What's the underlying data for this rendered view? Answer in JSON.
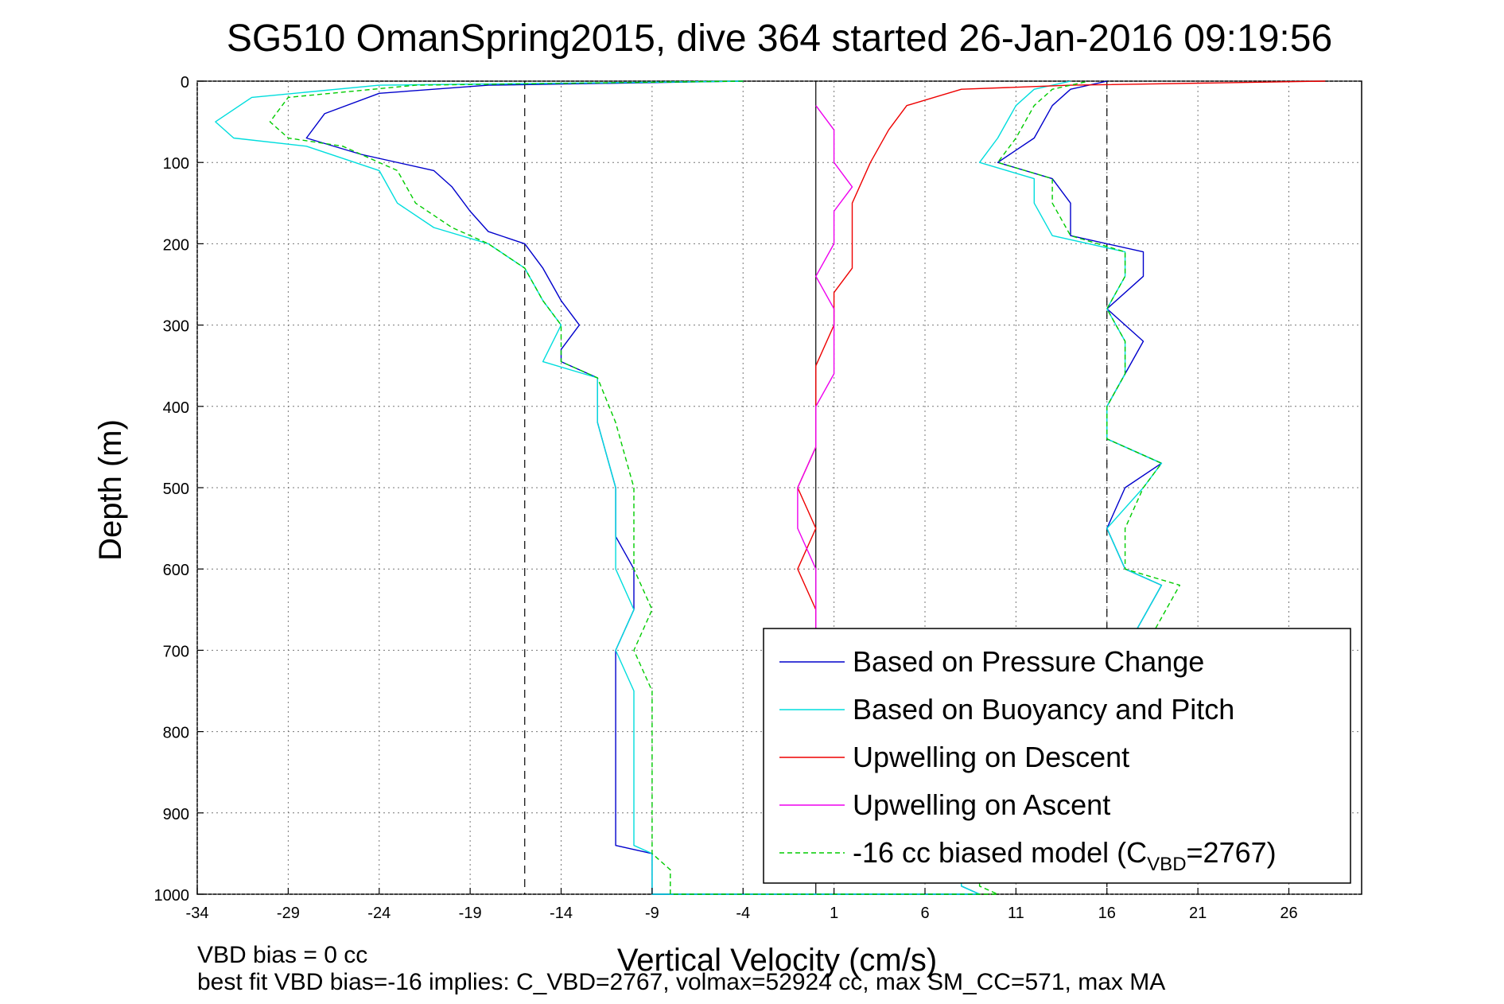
{
  "chart_data": {
    "type": "line",
    "title": "SG510 OmanSpring2015, dive 364 started 26-Jan-2016 09:19:56",
    "xlabel": "Vertical Velocity (cm/s)",
    "ylabel": "Depth (m)",
    "xlim": [
      -34,
      30
    ],
    "ylim": [
      0,
      1000
    ],
    "y_reversed": true,
    "grid": "dotted",
    "xticks": [
      -34,
      -29,
      -24,
      -19,
      -14,
      -9,
      -4,
      1,
      6,
      11,
      16,
      21,
      26
    ],
    "yticks": [
      0,
      100,
      200,
      300,
      400,
      500,
      600,
      700,
      800,
      900,
      1000
    ],
    "reference_lines": [
      {
        "x": -16,
        "style": "dashed"
      },
      {
        "x": 0,
        "style": "solid"
      },
      {
        "x": 16,
        "style": "dashed"
      }
    ],
    "legend_position": "lower-right",
    "series": [
      {
        "name": "Based on Pressure Change",
        "color": "#0000cc",
        "style": "solid",
        "points": [
          [
            -4,
            0
          ],
          [
            -18,
            5
          ],
          [
            -24,
            15
          ],
          [
            -27,
            40
          ],
          [
            -28,
            70
          ],
          [
            -25,
            90
          ],
          [
            -21,
            110
          ],
          [
            -20,
            130
          ],
          [
            -19,
            160
          ],
          [
            -18,
            185
          ],
          [
            -16,
            200
          ],
          [
            -15,
            230
          ],
          [
            -14,
            270
          ],
          [
            -13,
            300
          ],
          [
            -14,
            330
          ],
          [
            -14,
            345
          ],
          [
            -12,
            365
          ],
          [
            -12,
            420
          ],
          [
            -11,
            500
          ],
          [
            -11,
            560
          ],
          [
            -10,
            600
          ],
          [
            -10,
            650
          ],
          [
            -11,
            700
          ],
          [
            -11,
            750
          ],
          [
            -11,
            800
          ],
          [
            -11,
            850
          ],
          [
            -11,
            900
          ],
          [
            -11,
            940
          ],
          [
            -9,
            950
          ],
          [
            -9,
            970
          ],
          [
            -9,
            990
          ],
          [
            -9,
            1000
          ],
          [
            9,
            1000
          ],
          [
            8,
            990
          ],
          [
            8,
            960
          ],
          [
            8,
            900
          ],
          [
            11,
            870
          ],
          [
            11,
            850
          ],
          [
            12,
            820
          ],
          [
            14,
            780
          ],
          [
            15,
            740
          ],
          [
            17,
            700
          ],
          [
            18,
            660
          ],
          [
            19,
            620
          ],
          [
            17,
            600
          ],
          [
            16,
            550
          ],
          [
            17,
            500
          ],
          [
            19,
            470
          ],
          [
            16,
            440
          ],
          [
            16,
            400
          ],
          [
            17,
            360
          ],
          [
            18,
            320
          ],
          [
            16,
            280
          ],
          [
            18,
            240
          ],
          [
            18,
            210
          ],
          [
            14,
            190
          ],
          [
            14,
            150
          ],
          [
            13,
            120
          ],
          [
            10,
            100
          ],
          [
            12,
            70
          ],
          [
            13,
            30
          ],
          [
            14,
            10
          ],
          [
            16,
            0
          ]
        ]
      },
      {
        "name": "Based on Buoyancy and Pitch",
        "color": "#00dddd",
        "style": "solid",
        "points": [
          [
            -4,
            0
          ],
          [
            -24,
            5
          ],
          [
            -31,
            20
          ],
          [
            -33,
            50
          ],
          [
            -32,
            70
          ],
          [
            -28,
            80
          ],
          [
            -24,
            110
          ],
          [
            -23,
            150
          ],
          [
            -21,
            180
          ],
          [
            -18,
            200
          ],
          [
            -16,
            230
          ],
          [
            -15,
            270
          ],
          [
            -14,
            300
          ],
          [
            -15,
            345
          ],
          [
            -12,
            365
          ],
          [
            -12,
            420
          ],
          [
            -11,
            500
          ],
          [
            -11,
            560
          ],
          [
            -11,
            600
          ],
          [
            -10,
            650
          ],
          [
            -11,
            700
          ],
          [
            -10,
            750
          ],
          [
            -10,
            800
          ],
          [
            -10,
            850
          ],
          [
            -10,
            900
          ],
          [
            -10,
            940
          ],
          [
            -9,
            950
          ],
          [
            -9,
            970
          ],
          [
            -9,
            990
          ],
          [
            -9,
            1000
          ],
          [
            9,
            1000
          ],
          [
            8,
            990
          ],
          [
            8,
            960
          ],
          [
            8,
            900
          ],
          [
            11,
            870
          ],
          [
            11,
            850
          ],
          [
            12,
            820
          ],
          [
            14,
            780
          ],
          [
            15,
            740
          ],
          [
            17,
            700
          ],
          [
            18,
            660
          ],
          [
            19,
            620
          ],
          [
            17,
            600
          ],
          [
            16,
            550
          ],
          [
            18,
            500
          ],
          [
            19,
            470
          ],
          [
            16,
            440
          ],
          [
            16,
            400
          ],
          [
            17,
            360
          ],
          [
            17,
            320
          ],
          [
            16,
            280
          ],
          [
            17,
            240
          ],
          [
            17,
            210
          ],
          [
            13,
            190
          ],
          [
            12,
            150
          ],
          [
            12,
            120
          ],
          [
            9,
            100
          ],
          [
            10,
            70
          ],
          [
            11,
            30
          ],
          [
            12,
            10
          ],
          [
            14,
            0
          ]
        ]
      },
      {
        "name": "Upwelling on Descent",
        "color": "#ee0000",
        "style": "solid",
        "points": [
          [
            28,
            0
          ],
          [
            14,
            5
          ],
          [
            8,
            10
          ],
          [
            5,
            30
          ],
          [
            4,
            60
          ],
          [
            3,
            100
          ],
          [
            2,
            150
          ],
          [
            2,
            200
          ],
          [
            2,
            230
          ],
          [
            1,
            260
          ],
          [
            1,
            300
          ],
          [
            0,
            350
          ],
          [
            0,
            400
          ],
          [
            0,
            450
          ],
          [
            -1,
            500
          ],
          [
            0,
            550
          ],
          [
            -1,
            600
          ],
          [
            0,
            650
          ],
          [
            0,
            700
          ]
        ]
      },
      {
        "name": "Upwelling on Ascent",
        "color": "#ee00ee",
        "style": "solid",
        "points": [
          [
            0,
            30
          ],
          [
            1,
            60
          ],
          [
            1,
            100
          ],
          [
            2,
            130
          ],
          [
            1,
            160
          ],
          [
            1,
            200
          ],
          [
            0,
            240
          ],
          [
            1,
            280
          ],
          [
            1,
            320
          ],
          [
            1,
            360
          ],
          [
            0,
            400
          ],
          [
            0,
            450
          ],
          [
            -1,
            500
          ],
          [
            -1,
            550
          ],
          [
            0,
            600
          ],
          [
            0,
            650
          ],
          [
            0,
            700
          ]
        ]
      },
      {
        "name": "-16 cc biased model (C",
        "name_subscript": "VBD",
        "name_suffix": "=2767)",
        "color": "#00cc00",
        "style": "dashed",
        "points": [
          [
            -4,
            0
          ],
          [
            -22,
            5
          ],
          [
            -29,
            20
          ],
          [
            -30,
            50
          ],
          [
            -29,
            70
          ],
          [
            -26,
            80
          ],
          [
            -23,
            110
          ],
          [
            -22,
            150
          ],
          [
            -20,
            180
          ],
          [
            -18,
            200
          ],
          [
            -16,
            230
          ],
          [
            -15,
            270
          ],
          [
            -14,
            300
          ],
          [
            -14,
            345
          ],
          [
            -12,
            365
          ],
          [
            -11,
            420
          ],
          [
            -10,
            500
          ],
          [
            -10,
            560
          ],
          [
            -10,
            600
          ],
          [
            -9,
            650
          ],
          [
            -10,
            700
          ],
          [
            -9,
            750
          ],
          [
            -9,
            800
          ],
          [
            -9,
            850
          ],
          [
            -9,
            900
          ],
          [
            -9,
            940
          ],
          [
            -9,
            950
          ],
          [
            -8,
            970
          ],
          [
            -8,
            990
          ],
          [
            -8,
            1000
          ],
          [
            10,
            1000
          ],
          [
            9,
            990
          ],
          [
            9,
            960
          ],
          [
            9,
            900
          ],
          [
            12,
            870
          ],
          [
            12,
            850
          ],
          [
            13,
            820
          ],
          [
            15,
            780
          ],
          [
            16,
            740
          ],
          [
            18,
            700
          ],
          [
            19,
            660
          ],
          [
            20,
            620
          ],
          [
            17,
            600
          ],
          [
            17,
            550
          ],
          [
            18,
            500
          ],
          [
            19,
            470
          ],
          [
            16,
            440
          ],
          [
            16,
            400
          ],
          [
            17,
            360
          ],
          [
            17,
            320
          ],
          [
            16,
            280
          ],
          [
            17,
            240
          ],
          [
            17,
            210
          ],
          [
            14,
            190
          ],
          [
            13,
            150
          ],
          [
            13,
            120
          ],
          [
            10,
            100
          ],
          [
            11,
            70
          ],
          [
            12,
            30
          ],
          [
            13,
            10
          ],
          [
            15,
            0
          ]
        ]
      }
    ]
  },
  "notes": {
    "line1": "VBD bias = 0 cc",
    "line2": "best fit VBD bias=-16 implies: C_VBD=2767, volmax=52924 cc, max SM_CC=571, max MA"
  }
}
